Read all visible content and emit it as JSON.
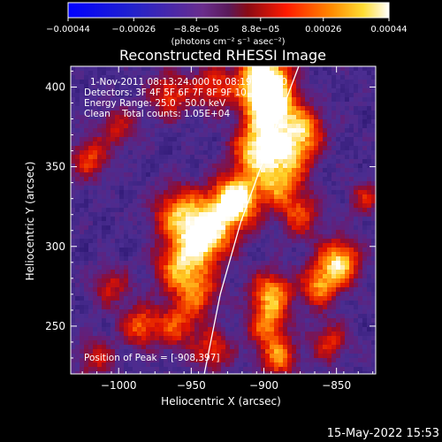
{
  "chart_data": {
    "type": "heatmap",
    "title": "Reconstructed RHESSI Image",
    "xlabel": "Heliocentric X (arcsec)",
    "ylabel": "Heliocentric Y (arcsec)",
    "xlim": [
      -1033,
      -823
    ],
    "ylim": [
      220,
      413
    ],
    "x_ticks": [
      -1000,
      -950,
      -900,
      -850
    ],
    "y_ticks": [
      250,
      300,
      350,
      400
    ],
    "x_tick_labels": [
      "−1000",
      "−950",
      "−900",
      "−850"
    ],
    "y_tick_labels": [
      "250",
      "300",
      "350",
      "400"
    ],
    "colorbar": {
      "range": [
        -0.00044,
        0.00044
      ],
      "ticks": [
        -0.00044,
        -0.00026,
        -8.8e-05,
        8.8e-05,
        0.00026,
        0.00044
      ],
      "tick_labels": [
        "−0.00044",
        "−0.00026",
        "−8.8e−05",
        "8.8e−05",
        "0.00026",
        "0.00044"
      ],
      "unit_label": "(photons cm⁻² s⁻¹ asec⁻²)",
      "colormap": "blue-purple-red-orange-yellow-white"
    },
    "annotations": {
      "time": "1-Nov-2011 08:13:24.000 to 08:19:24.000",
      "detectors": "Detectors: 3F 4F 5F 6F 7F 8F 9F 10",
      "energy": "Energy Range: 25.0 - 50.0 keV",
      "clean": "Clean    Total counts: 1.05E+04",
      "peak": "Position of Peak = [-908,397]"
    },
    "peak_position": [
      -908,
      397
    ],
    "limb_curve": [
      [
        -941,
        220
      ],
      [
        -930,
        270
      ],
      [
        -916,
        315
      ],
      [
        -898,
        360
      ],
      [
        -876,
        413
      ]
    ],
    "emission_blobs": [
      {
        "x": -900,
        "y": 405,
        "amp": 1.0,
        "s": 12
      },
      {
        "x": -895,
        "y": 385,
        "amp": 0.85,
        "s": 12
      },
      {
        "x": -905,
        "y": 360,
        "amp": 0.75,
        "s": 11
      },
      {
        "x": -918,
        "y": 330,
        "amp": 0.85,
        "s": 11
      },
      {
        "x": -935,
        "y": 315,
        "amp": 0.6,
        "s": 13
      },
      {
        "x": -945,
        "y": 300,
        "amp": 0.55,
        "s": 12
      },
      {
        "x": -960,
        "y": 320,
        "amp": 0.55,
        "s": 12
      },
      {
        "x": -960,
        "y": 285,
        "amp": 0.5,
        "s": 11
      },
      {
        "x": -945,
        "y": 270,
        "amp": 0.45,
        "s": 10
      },
      {
        "x": -960,
        "y": 250,
        "amp": 0.45,
        "s": 10
      },
      {
        "x": -985,
        "y": 250,
        "amp": 0.5,
        "s": 9
      },
      {
        "x": -1005,
        "y": 275,
        "amp": 0.35,
        "s": 9
      },
      {
        "x": -1020,
        "y": 355,
        "amp": 0.45,
        "s": 9
      },
      {
        "x": -1000,
        "y": 375,
        "amp": 0.35,
        "s": 9
      },
      {
        "x": -965,
        "y": 395,
        "amp": 0.45,
        "s": 10
      },
      {
        "x": -935,
        "y": 400,
        "amp": 0.45,
        "s": 10
      },
      {
        "x": -880,
        "y": 360,
        "amp": 0.6,
        "s": 11
      },
      {
        "x": -890,
        "y": 340,
        "amp": 0.55,
        "s": 10
      },
      {
        "x": -875,
        "y": 320,
        "amp": 0.45,
        "s": 10
      },
      {
        "x": -870,
        "y": 375,
        "amp": 0.45,
        "s": 9
      },
      {
        "x": -848,
        "y": 290,
        "amp": 0.75,
        "s": 10
      },
      {
        "x": -862,
        "y": 275,
        "amp": 0.55,
        "s": 9
      },
      {
        "x": -895,
        "y": 270,
        "amp": 0.65,
        "s": 10
      },
      {
        "x": -898,
        "y": 250,
        "amp": 0.5,
        "s": 9
      },
      {
        "x": -890,
        "y": 230,
        "amp": 0.55,
        "s": 9
      },
      {
        "x": -855,
        "y": 240,
        "amp": 0.4,
        "s": 9
      },
      {
        "x": -935,
        "y": 235,
        "amp": 0.45,
        "s": 9
      },
      {
        "x": -1015,
        "y": 230,
        "amp": 0.35,
        "s": 9
      },
      {
        "x": -830,
        "y": 330,
        "amp": 0.35,
        "s": 8
      }
    ]
  },
  "footer": {
    "date": "15-May-2022 15:53"
  }
}
